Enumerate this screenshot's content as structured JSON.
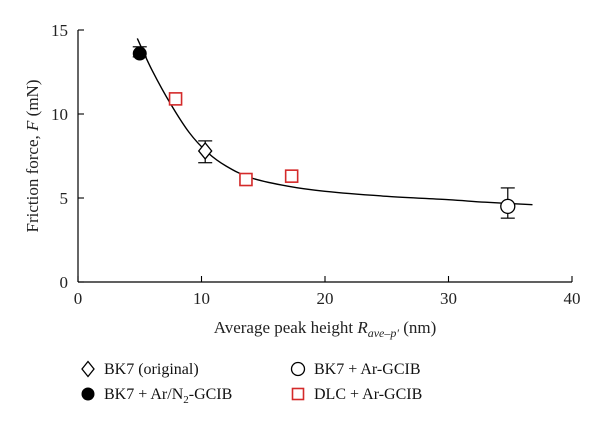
{
  "chart_data": {
    "type": "scatter",
    "xlabel_prefix": "Average peak height ",
    "xlabel_symbol": "R",
    "xlabel_subscript": "ave–p′",
    "xlabel_unit": " (nm)",
    "ylabel_prefix": "Friction force, ",
    "ylabel_symbol": "F",
    "ylabel_unit": " (mN)",
    "xlim": [
      0,
      40
    ],
    "ylim": [
      0,
      15
    ],
    "x_ticks": [
      0,
      10,
      20,
      30,
      40
    ],
    "y_ticks": [
      0,
      5,
      10,
      15
    ],
    "x_tick_labels": [
      "0",
      "10",
      "20",
      "30",
      "40"
    ],
    "y_tick_labels": [
      "0",
      "5",
      "10",
      "15"
    ],
    "grid": false,
    "legend_position": "bottom",
    "series": [
      {
        "name": "BK7 (original)",
        "marker": "diamond-open",
        "color": "#000000",
        "points": [
          {
            "x": 10.3,
            "y": 7.8,
            "ymin": 7.1,
            "ymax": 8.4
          }
        ]
      },
      {
        "name": "BK7 + Ar-GCIB",
        "marker": "circle-open",
        "color": "#000000",
        "points": [
          {
            "x": 34.8,
            "y": 4.5,
            "ymin": 3.8,
            "ymax": 5.6
          }
        ]
      },
      {
        "name": "BK7 + Ar/N2-GCIB",
        "marker": "circle-filled",
        "color": "#000000",
        "points": [
          {
            "x": 5.0,
            "y": 13.6,
            "ymin": 13.4,
            "ymax": 14.0
          }
        ]
      },
      {
        "name": "DLC + Ar-GCIB",
        "marker": "square-open",
        "color": "#d42a2a",
        "points": [
          {
            "x": 7.9,
            "y": 10.9
          },
          {
            "x": 13.6,
            "y": 6.1
          },
          {
            "x": 17.3,
            "y": 6.3
          }
        ]
      }
    ],
    "fit_curve": [
      {
        "x": 4.8,
        "y": 14.5
      },
      {
        "x": 6.0,
        "y": 12.6
      },
      {
        "x": 7.5,
        "y": 10.6
      },
      {
        "x": 9.0,
        "y": 8.9
      },
      {
        "x": 10.5,
        "y": 7.7
      },
      {
        "x": 12.0,
        "y": 6.9
      },
      {
        "x": 14.0,
        "y": 6.2
      },
      {
        "x": 17.0,
        "y": 5.7
      },
      {
        "x": 20.0,
        "y": 5.4
      },
      {
        "x": 25.0,
        "y": 5.1
      },
      {
        "x": 30.0,
        "y": 4.9
      },
      {
        "x": 33.0,
        "y": 4.75
      },
      {
        "x": 36.8,
        "y": 4.6
      }
    ]
  }
}
